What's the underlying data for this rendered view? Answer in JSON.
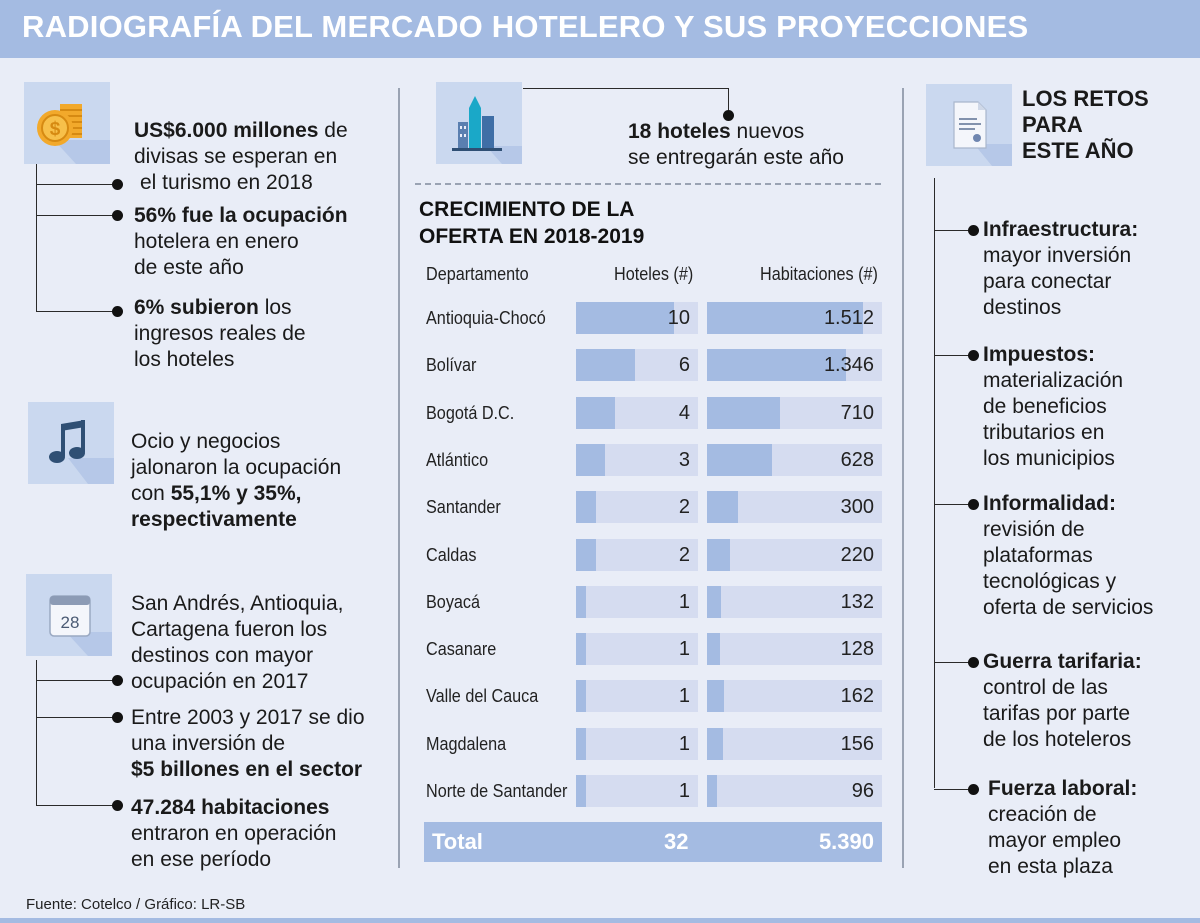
{
  "header": {
    "title": "RADIOGRAFÍA DEL MERCADO HOTELERO Y SUS PROYECCIONES"
  },
  "colors": {
    "accent": "#a4bbe2",
    "track": "#d5dcf0",
    "background": "#e9edf7",
    "icon_bg": "#cad8ef"
  },
  "left": {
    "block1": {
      "icon": "coins-icon",
      "l1_b": "US$6.000 millones",
      "l1_r": " de",
      "l2": "divisas se esperan en",
      "l3": "el turismo en 2018",
      "b2_l1": "56% fue la ocupación",
      "b2_l2": "hotelera en enero",
      "b2_l3": "de este año",
      "b3_l1_b": "6% subieron",
      "b3_l1_r": " los",
      "b3_l2": "ingresos reales de",
      "b3_l3": "los hoteles"
    },
    "block2": {
      "icon": "music-note-icon",
      "l1": "Ocio y negocios",
      "l2": "jalonaron la ocupación",
      "l3_r": "con ",
      "l3_b": "55,1% y 35%,",
      "l4_b": "respectivamente"
    },
    "block3": {
      "icon": "calendar-icon",
      "calendar_day": "28",
      "l1": "San Andrés, Antioquia,",
      "l2": "Cartagena fueron los",
      "l3": "destinos con mayor",
      "l4": "ocupación en 2017",
      "b2_l1": "Entre 2003 y 2017 se dio",
      "b2_l2": "una inversión de",
      "b2_l3": "$5 billones en el sector",
      "b3_l1": "47.284 habitaciones",
      "b3_l2": "entraron en operación",
      "b3_l3": "en ese período"
    }
  },
  "middle": {
    "icon": "buildings-icon",
    "note_b": "18 hoteles",
    "note_r": " nuevos",
    "note_l2": "se entregarán este año"
  },
  "chart_data": {
    "type": "table",
    "title": "CRECIMIENTO DE LA OFERTA EN 2018-2019",
    "columns": [
      "Departamento",
      "Hoteles (#)",
      "Habitaciones (#)"
    ],
    "hotels_max": 12.5,
    "rooms_max": 1700,
    "rows": [
      {
        "dept": "Antioquia-Chocó",
        "hotels": 10,
        "hotels_label": "10",
        "rooms": 1512,
        "rooms_label": "1.512"
      },
      {
        "dept": "Bolívar",
        "hotels": 6,
        "hotels_label": "6",
        "rooms": 1346,
        "rooms_label": "1.346"
      },
      {
        "dept": "Bogotá D.C.",
        "hotels": 4,
        "hotels_label": "4",
        "rooms": 710,
        "rooms_label": "710"
      },
      {
        "dept": "Atlántico",
        "hotels": 3,
        "hotels_label": "3",
        "rooms": 628,
        "rooms_label": "628"
      },
      {
        "dept": "Santander",
        "hotels": 2,
        "hotels_label": "2",
        "rooms": 300,
        "rooms_label": "300"
      },
      {
        "dept": "Caldas",
        "hotels": 2,
        "hotels_label": "2",
        "rooms": 220,
        "rooms_label": "220"
      },
      {
        "dept": "Boyacá",
        "hotels": 1,
        "hotels_label": "1",
        "rooms": 132,
        "rooms_label": "132"
      },
      {
        "dept": "Casanare",
        "hotels": 1,
        "hotels_label": "1",
        "rooms": 128,
        "rooms_label": "128"
      },
      {
        "dept": "Valle del Cauca",
        "hotels": 1,
        "hotels_label": "1",
        "rooms": 162,
        "rooms_label": "162"
      },
      {
        "dept": "Magdalena",
        "hotels": 1,
        "hotels_label": "1",
        "rooms": 156,
        "rooms_label": "156"
      },
      {
        "dept": "Norte de Santander",
        "hotels": 1,
        "hotels_label": "1",
        "rooms": 96,
        "rooms_label": "96"
      }
    ],
    "total": {
      "label": "Total",
      "hotels": "32",
      "rooms": "5.390"
    }
  },
  "right": {
    "icon": "document-icon",
    "title_l1": "LOS RETOS",
    "title_l2": "PARA",
    "title_l3": "ESTE AÑO",
    "items": [
      {
        "head": "Infraestructura:",
        "lines": [
          "mayor inversión",
          "para conectar",
          "destinos"
        ]
      },
      {
        "head": "Impuestos:",
        "lines": [
          "materialización",
          "de beneficios",
          "tributarios en",
          "los municipios"
        ]
      },
      {
        "head": "Informalidad:",
        "lines": [
          "revisión de",
          "plataformas",
          "tecnológicas y",
          "oferta de servicios"
        ]
      },
      {
        "head": "Guerra tarifaria:",
        "lines": [
          "control de las",
          "tarifas por parte",
          "de los hoteleros"
        ]
      },
      {
        "head": "Fuerza laboral:",
        "lines": [
          "creación de",
          "mayor empleo",
          "en esta plaza"
        ]
      }
    ]
  },
  "footer": {
    "source": "Fuente:  Cotelco  / Gráfico: LR-SB"
  }
}
